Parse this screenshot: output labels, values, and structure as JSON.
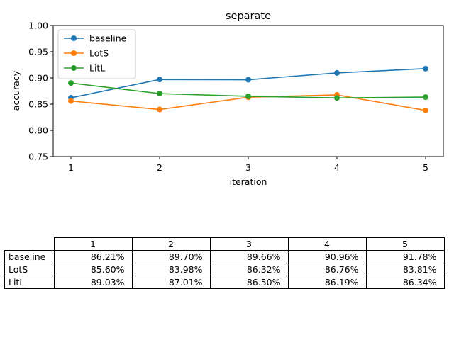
{
  "chart_data": {
    "type": "line",
    "title": "separate",
    "xlabel": "iteration",
    "ylabel": "accuracy",
    "x": [
      1,
      2,
      3,
      4,
      5
    ],
    "xlim": [
      0.8,
      5.2
    ],
    "ylim": [
      0.75,
      1.0
    ],
    "yticks": [
      "0.75",
      "0.80",
      "0.85",
      "0.90",
      "0.95",
      "1.00"
    ],
    "grid": false,
    "legend_position": "top-left",
    "series": [
      {
        "name": "baseline",
        "color": "#1f77b4",
        "values": [
          0.8621,
          0.897,
          0.8966,
          0.9096,
          0.9178
        ]
      },
      {
        "name": "LotS",
        "color": "#ff7f0e",
        "values": [
          0.856,
          0.8398,
          0.8632,
          0.8676,
          0.8381
        ]
      },
      {
        "name": "LitL",
        "color": "#2ca02c",
        "values": [
          0.8903,
          0.8701,
          0.865,
          0.8619,
          0.8634
        ]
      }
    ]
  },
  "table": {
    "columns": [
      "1",
      "2",
      "3",
      "4",
      "5"
    ],
    "rows": [
      {
        "label": "baseline",
        "cells": [
          "86.21%",
          "89.70%",
          "89.66%",
          "90.96%",
          "91.78%"
        ]
      },
      {
        "label": "LotS",
        "cells": [
          "85.60%",
          "83.98%",
          "86.32%",
          "86.76%",
          "83.81%"
        ]
      },
      {
        "label": "LitL",
        "cells": [
          "89.03%",
          "87.01%",
          "86.50%",
          "86.19%",
          "86.34%"
        ]
      }
    ]
  }
}
